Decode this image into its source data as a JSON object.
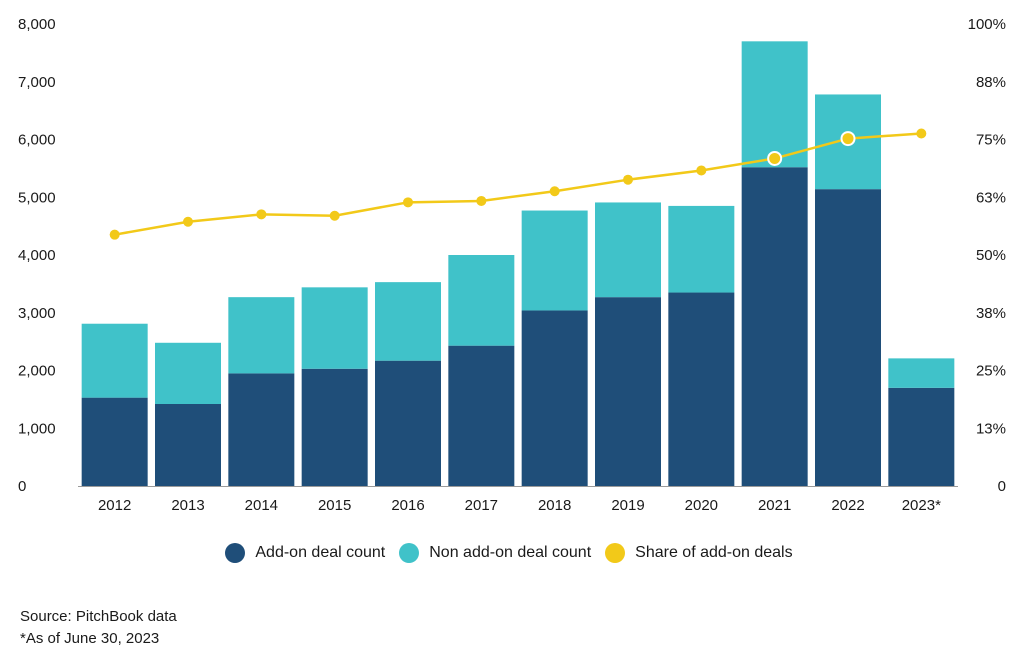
{
  "chart_data": {
    "type": "bar",
    "stacked": true,
    "categories": [
      "2012",
      "2013",
      "2014",
      "2015",
      "2016",
      "2017",
      "2018",
      "2019",
      "2020",
      "2021",
      "2022",
      "2023*"
    ],
    "series": [
      {
        "name": "Add-on deal count",
        "type": "bar",
        "axis": "left",
        "values": [
          1530,
          1420,
          1950,
          2030,
          2170,
          2430,
          3040,
          3270,
          3350,
          5520,
          5140,
          1700
        ]
      },
      {
        "name": "Non add-on deal count",
        "type": "bar",
        "axis": "left",
        "values": [
          1280,
          1060,
          1320,
          1410,
          1360,
          1570,
          1730,
          1640,
          1500,
          2180,
          1640,
          510
        ]
      },
      {
        "name": "Share of add-on deals",
        "type": "line",
        "axis": "right",
        "unit": "%",
        "values": [
          54.4,
          57.2,
          58.8,
          58.5,
          61.4,
          61.7,
          63.8,
          66.3,
          68.3,
          70.9,
          75.2,
          76.3
        ]
      }
    ],
    "y_left": {
      "min": 0,
      "max": 8000,
      "ticks": [
        "0",
        "1,000",
        "2,000",
        "3,000",
        "4,000",
        "5,000",
        "6,000",
        "7,000",
        "8,000"
      ]
    },
    "y_right": {
      "min": 0,
      "max": 100,
      "unit": "%",
      "ticks": [
        "0",
        "13%",
        "25%",
        "38%",
        "50%",
        "63%",
        "75%",
        "88%",
        "100%"
      ]
    },
    "grid": false,
    "legend_position": "bottom-center",
    "colors": {
      "addon": "#1f4e79",
      "nonaddon": "#40c2c9",
      "share": "#f2c919"
    },
    "highlighted_points": [
      "2021",
      "2022"
    ]
  },
  "legend": [
    {
      "label": "Add-on deal count",
      "color": "#1f4e79"
    },
    {
      "label": "Non add-on deal count",
      "color": "#40c2c9"
    },
    {
      "label": "Share of add-on deals",
      "color": "#f2c919"
    }
  ],
  "notes": {
    "source": "Source: PitchBook data",
    "footnote": "*As of June 30, 2023"
  }
}
